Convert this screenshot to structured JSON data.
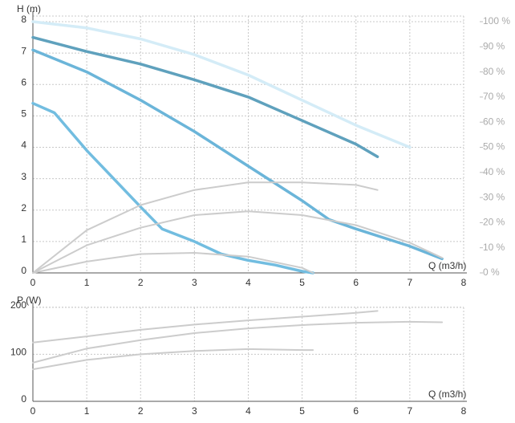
{
  "chart_data": [
    {
      "type": "line",
      "y_label": "H (m)",
      "x_label": "Q (m3/h)",
      "xlim": [
        0,
        8
      ],
      "xticks": [
        0,
        1,
        2,
        3,
        4,
        5,
        6,
        7,
        8
      ],
      "ylim": [
        0,
        8
      ],
      "yticks": [
        0,
        1,
        2,
        3,
        4,
        5,
        6,
        7,
        8
      ],
      "y2lim": [
        0,
        100
      ],
      "y2ticks": [
        {
          "value": 0,
          "label": "0 %"
        },
        {
          "value": 10,
          "label": "10 %"
        },
        {
          "value": 20,
          "label": "20 %"
        },
        {
          "value": 30,
          "label": "30 %"
        },
        {
          "value": 40,
          "label": "40 %"
        },
        {
          "value": 50,
          "label": "50 %"
        },
        {
          "value": 60,
          "label": "60 %"
        },
        {
          "value": 70,
          "label": "70 %"
        },
        {
          "value": 80,
          "label": "80 %"
        },
        {
          "value": 90,
          "label": "90 %"
        },
        {
          "value": 100,
          "label": "100 %"
        }
      ],
      "grid": true,
      "series": [
        {
          "color": "#d4ecf7",
          "x": [
            0,
            1,
            2,
            3,
            4,
            5,
            6,
            7
          ],
          "values": [
            8,
            7.8,
            7.45,
            6.95,
            6.3,
            5.5,
            4.7,
            4.0
          ]
        },
        {
          "color": "#5fa1bd",
          "x": [
            0,
            1,
            2,
            3,
            4,
            5,
            6,
            6.4
          ],
          "values": [
            7.5,
            7.05,
            6.65,
            6.15,
            5.6,
            4.85,
            4.1,
            3.7
          ]
        },
        {
          "color": "#6bb5d9",
          "x": [
            0,
            1,
            2,
            3,
            4,
            5,
            5.5,
            6,
            7,
            7.6
          ],
          "values": [
            7.1,
            6.4,
            5.5,
            4.5,
            3.4,
            2.3,
            1.7,
            1.4,
            0.85,
            0.45
          ]
        },
        {
          "color": "#72bde0",
          "x": [
            0,
            0.4,
            1,
            2,
            2.4,
            3,
            3.5,
            4,
            4.5,
            5,
            5.2
          ],
          "values": [
            5.4,
            5.1,
            3.9,
            2.1,
            1.4,
            1.0,
            0.6,
            0.4,
            0.25,
            0.05,
            0
          ]
        },
        {
          "color": "#cccccc",
          "axis": "y2",
          "x": [
            0,
            1,
            2,
            3,
            4,
            5,
            6,
            6.4
          ],
          "values": [
            0,
            17,
            27,
            33,
            36,
            36,
            35,
            33
          ]
        },
        {
          "color": "#cccccc",
          "axis": "y2",
          "x": [
            0,
            1,
            2,
            3,
            4,
            5,
            6,
            7,
            7.6
          ],
          "values": [
            0,
            11,
            18,
            23,
            24.5,
            23,
            19,
            12,
            6
          ]
        },
        {
          "color": "#cccccc",
          "axis": "y2",
          "x": [
            0,
            1,
            2,
            3,
            4,
            5,
            5.2
          ],
          "values": [
            0,
            4.5,
            7.5,
            8,
            6.5,
            2,
            0
          ]
        }
      ]
    },
    {
      "type": "line",
      "y_label": "P (W)",
      "x_label": "Q (m3/h)",
      "xlim": [
        0,
        8
      ],
      "xticks": [
        0,
        1,
        2,
        3,
        4,
        5,
        6,
        7,
        8
      ],
      "ylim": [
        0,
        220
      ],
      "yticks": [
        0,
        100,
        200
      ],
      "grid": true,
      "series": [
        {
          "color": "#cccccc",
          "x": [
            0,
            1,
            2,
            3,
            4,
            5,
            6,
            6.4
          ],
          "values": [
            125,
            138,
            152,
            163,
            172,
            180,
            188,
            192
          ]
        },
        {
          "color": "#cccccc",
          "x": [
            0,
            1,
            2,
            3,
            4,
            5,
            6,
            7,
            7.6
          ],
          "values": [
            82,
            112,
            130,
            145,
            155,
            162,
            167,
            169,
            168
          ]
        },
        {
          "color": "#cccccc",
          "x": [
            0,
            1,
            2,
            3,
            4,
            5,
            5.2
          ],
          "values": [
            68,
            88,
            100,
            107,
            111,
            109,
            109
          ]
        }
      ]
    }
  ]
}
